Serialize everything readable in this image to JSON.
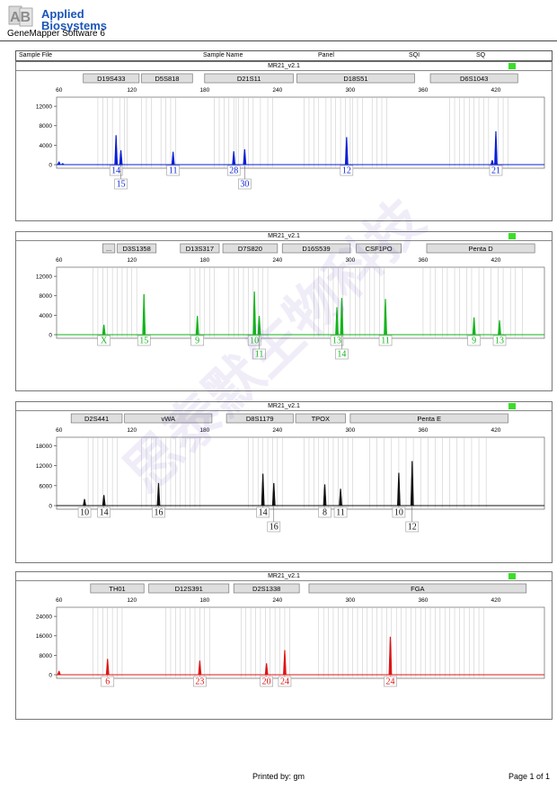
{
  "brand": {
    "logo_letters": "AB",
    "line1": "Applied",
    "line2": "Biosystems",
    "software": "GeneMapper Software 6"
  },
  "header": {
    "sample_file": "Sample File",
    "sample_name": "Sample Name",
    "panel": "Panel",
    "sqi": "SQI",
    "sq": "SQ"
  },
  "watermark": "思泰默生物科技",
  "footer": {
    "printed_by": "Printed by: gm",
    "page": "Page 1 of 1"
  },
  "colors": {
    "blue": "#0a1fd6",
    "green": "#12b51a",
    "black": "#111111",
    "red": "#e01414",
    "status": "#3ddc2b"
  },
  "chart_data": [
    {
      "type": "line",
      "panel_title": "MR21_v2.1",
      "color": "#0a1fd6",
      "x_ticks": [
        60,
        120,
        180,
        240,
        300,
        360,
        420
      ],
      "y_ticks": [
        0,
        4000,
        8000,
        12000
      ],
      "ylim": [
        0,
        13500
      ],
      "xlim": [
        58,
        460
      ],
      "markers": [
        {
          "name": "D19S433",
          "from": 80,
          "to": 126
        },
        {
          "name": "D5S818",
          "from": 128,
          "to": 170
        },
        {
          "name": "D21S11",
          "from": 180,
          "to": 253
        },
        {
          "name": "D18S51",
          "from": 256,
          "to": 353
        },
        {
          "name": "D6S1043",
          "from": 366,
          "to": 438
        }
      ],
      "bins": [
        92,
        96,
        100,
        104,
        110,
        114,
        116,
        128,
        132,
        136,
        144,
        148,
        152,
        156,
        188,
        192,
        196,
        200,
        204,
        206,
        208,
        212,
        216,
        220,
        226,
        232,
        236,
        262,
        266,
        270,
        274,
        280,
        284,
        288,
        292,
        296,
        300,
        302,
        306,
        310,
        318,
        322,
        326,
        330,
        382,
        386,
        390,
        394,
        398,
        402,
        406,
        410,
        414,
        422,
        426,
        430
      ],
      "peaks": [
        {
          "x": 60,
          "h": 600
        },
        {
          "x": 63,
          "h": 250
        },
        {
          "x": 107,
          "h": 6000
        },
        {
          "x": 111,
          "h": 2900
        },
        {
          "x": 154,
          "h": 2600
        },
        {
          "x": 204,
          "h": 2700
        },
        {
          "x": 213,
          "h": 3100
        },
        {
          "x": 297,
          "h": 5600
        },
        {
          "x": 417,
          "h": 900
        },
        {
          "x": 420,
          "h": 6800
        }
      ],
      "alleles": [
        {
          "x": 107,
          "label": "14",
          "row": 1
        },
        {
          "x": 111,
          "label": "15",
          "row": 2
        },
        {
          "x": 154,
          "label": "11",
          "row": 1
        },
        {
          "x": 204,
          "label": "28",
          "row": 1
        },
        {
          "x": 213,
          "label": "30",
          "row": 2
        },
        {
          "x": 297,
          "label": "12",
          "row": 1
        },
        {
          "x": 420,
          "label": "21",
          "row": 1
        }
      ]
    },
    {
      "type": "line",
      "panel_title": "MR21_v2.1",
      "color": "#12b51a",
      "x_ticks": [
        60,
        120,
        180,
        240,
        300,
        360,
        420
      ],
      "y_ticks": [
        0,
        4000,
        8000,
        12000
      ],
      "ylim": [
        0,
        13500
      ],
      "xlim": [
        58,
        460
      ],
      "markers": [
        {
          "name": "...",
          "from": 96,
          "to": 106
        },
        {
          "name": "D3S1358",
          "from": 108,
          "to": 140
        },
        {
          "name": "D13S317",
          "from": 160,
          "to": 192
        },
        {
          "name": "D7S820",
          "from": 195,
          "to": 240
        },
        {
          "name": "D16S539",
          "from": 244,
          "to": 300
        },
        {
          "name": "CSF1PO",
          "from": 305,
          "to": 342
        },
        {
          "name": "Penta D",
          "from": 363,
          "to": 452
        }
      ],
      "bins": [
        88,
        92,
        96,
        100,
        104,
        108,
        112,
        116,
        120,
        124,
        168,
        172,
        176,
        180,
        184,
        188,
        200,
        204,
        208,
        212,
        216,
        220,
        224,
        228,
        232,
        270,
        274,
        278,
        282,
        286,
        290,
        294,
        300,
        304,
        308,
        312,
        316,
        320,
        324,
        328,
        360,
        366,
        370,
        376,
        380,
        386,
        390,
        396,
        400,
        406,
        410,
        416,
        422,
        426,
        432,
        436,
        442
      ],
      "peaks": [
        {
          "x": 97,
          "h": 2000
        },
        {
          "x": 130,
          "h": 8300
        },
        {
          "x": 174,
          "h": 3800
        },
        {
          "x": 221,
          "h": 8800
        },
        {
          "x": 225,
          "h": 3800
        },
        {
          "x": 289,
          "h": 5600
        },
        {
          "x": 293,
          "h": 7500
        },
        {
          "x": 329,
          "h": 7300
        },
        {
          "x": 402,
          "h": 3500
        },
        {
          "x": 423,
          "h": 2900
        }
      ],
      "alleles": [
        {
          "x": 97,
          "label": "X",
          "row": 1
        },
        {
          "x": 130,
          "label": "15",
          "row": 1
        },
        {
          "x": 174,
          "label": "9",
          "row": 1
        },
        {
          "x": 221,
          "label": "10",
          "row": 1
        },
        {
          "x": 225,
          "label": "11",
          "row": 2
        },
        {
          "x": 289,
          "label": "13",
          "row": 1
        },
        {
          "x": 293,
          "label": "14",
          "row": 2
        },
        {
          "x": 329,
          "label": "11",
          "row": 1
        },
        {
          "x": 402,
          "label": "9",
          "row": 1
        },
        {
          "x": 423,
          "label": "13",
          "row": 1
        }
      ]
    },
    {
      "type": "line",
      "panel_title": "MR21_v2.1",
      "color": "#111111",
      "x_ticks": [
        60,
        120,
        180,
        240,
        300,
        360,
        420
      ],
      "y_ticks": [
        0,
        6000,
        12000,
        18000
      ],
      "ylim": [
        0,
        20000
      ],
      "xlim": [
        58,
        460
      ],
      "markers": [
        {
          "name": "D2S441",
          "from": 70,
          "to": 112
        },
        {
          "name": "vWA",
          "from": 114,
          "to": 186
        },
        {
          "name": "D8S1179",
          "from": 198,
          "to": 253
        },
        {
          "name": "TPOX",
          "from": 255,
          "to": 296
        },
        {
          "name": "Penta E",
          "from": 300,
          "to": 430
        }
      ],
      "bins": [
        84,
        88,
        92,
        96,
        100,
        104,
        108,
        128,
        132,
        136,
        140,
        144,
        148,
        152,
        156,
        160,
        164,
        168,
        172,
        176,
        216,
        220,
        224,
        228,
        232,
        236,
        240,
        244,
        262,
        266,
        270,
        274,
        278,
        282,
        286,
        290,
        294,
        298,
        302,
        316,
        322,
        328,
        334,
        340,
        346,
        352,
        358,
        364,
        370,
        376,
        382,
        388,
        394,
        400,
        406,
        412
      ],
      "peaks": [
        {
          "x": 81,
          "h": 1900
        },
        {
          "x": 97,
          "h": 3100
        },
        {
          "x": 142,
          "h": 6700
        },
        {
          "x": 228,
          "h": 9500
        },
        {
          "x": 237,
          "h": 6700
        },
        {
          "x": 279,
          "h": 6300
        },
        {
          "x": 292,
          "h": 5000
        },
        {
          "x": 340,
          "h": 9800
        },
        {
          "x": 351,
          "h": 13300
        }
      ],
      "alleles": [
        {
          "x": 81,
          "label": "10",
          "row": 1
        },
        {
          "x": 97,
          "label": "14",
          "row": 1
        },
        {
          "x": 142,
          "label": "16",
          "row": 1
        },
        {
          "x": 228,
          "label": "14",
          "row": 1
        },
        {
          "x": 237,
          "label": "16",
          "row": 2
        },
        {
          "x": 279,
          "label": "8",
          "row": 1
        },
        {
          "x": 292,
          "label": "11",
          "row": 1
        },
        {
          "x": 340,
          "label": "10",
          "row": 1
        },
        {
          "x": 351,
          "label": "12",
          "row": 2
        }
      ]
    },
    {
      "type": "line",
      "panel_title": "MR21_v2.1",
      "color": "#e01414",
      "x_ticks": [
        60,
        120,
        180,
        240,
        300,
        360,
        420
      ],
      "y_ticks": [
        0,
        8000,
        16000,
        24000
      ],
      "ylim": [
        0,
        27000
      ],
      "xlim": [
        58,
        460
      ],
      "markers": [
        {
          "name": "TH01",
          "from": 86,
          "to": 130
        },
        {
          "name": "D12S391",
          "from": 134,
          "to": 200
        },
        {
          "name": "D2S1338",
          "from": 204,
          "to": 258
        },
        {
          "name": "FGA",
          "from": 266,
          "to": 445
        }
      ],
      "bins": [
        88,
        92,
        96,
        100,
        104,
        108,
        112,
        148,
        152,
        156,
        160,
        164,
        168,
        172,
        176,
        180,
        184,
        210,
        214,
        218,
        222,
        226,
        230,
        234,
        238,
        242,
        246,
        250,
        274,
        278,
        282,
        286,
        290,
        294,
        298,
        302,
        306,
        310,
        314,
        318,
        322,
        326,
        330,
        334,
        338,
        342,
        346,
        350,
        354,
        358,
        362,
        366,
        370,
        374,
        378,
        382,
        386,
        390,
        394,
        398,
        402,
        406,
        410
      ],
      "peaks": [
        {
          "x": 60,
          "h": 1500
        },
        {
          "x": 100,
          "h": 6400
        },
        {
          "x": 176,
          "h": 5700
        },
        {
          "x": 231,
          "h": 4600
        },
        {
          "x": 246,
          "h": 10000
        },
        {
          "x": 333,
          "h": 15500
        }
      ],
      "alleles": [
        {
          "x": 100,
          "label": "6",
          "row": 1
        },
        {
          "x": 176,
          "label": "23",
          "row": 1
        },
        {
          "x": 231,
          "label": "20",
          "row": 1
        },
        {
          "x": 246,
          "label": "24",
          "row": 1
        },
        {
          "x": 333,
          "label": "24",
          "row": 1
        }
      ]
    }
  ]
}
